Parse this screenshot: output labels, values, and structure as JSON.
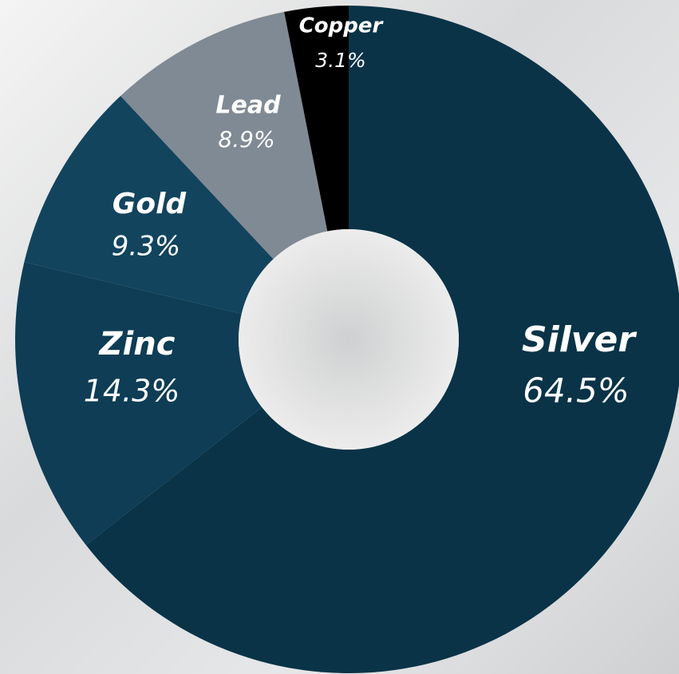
{
  "chart_data": {
    "type": "donut",
    "categories": [
      "Silver",
      "Zinc",
      "Gold",
      "Lead",
      "Copper"
    ],
    "values": [
      64.5,
      14.3,
      9.3,
      8.9,
      3.1
    ],
    "value_labels": [
      "64.5%",
      "14.3%",
      "9.3%",
      "8.9%",
      "3.1%"
    ],
    "colors": [
      "#0a3347",
      "#0e3d55",
      "#12445e",
      "#808a94",
      "#000000"
    ]
  }
}
